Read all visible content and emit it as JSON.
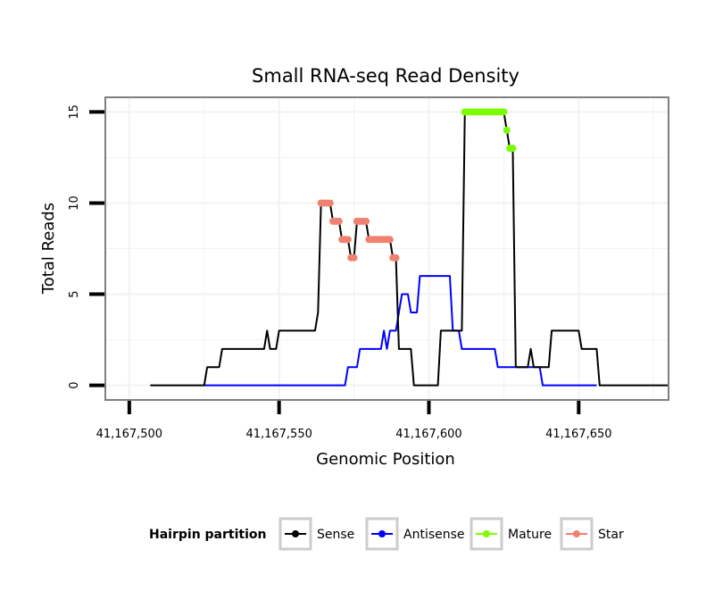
{
  "chart_data": {
    "type": "line",
    "title": "Small RNA-seq Read Density",
    "xlabel": "Genomic Position",
    "ylabel": "Total Reads",
    "xlim": [
      41167492,
      41167680
    ],
    "ylim": [
      -0.8,
      15.8
    ],
    "x_ticks": [
      41167500,
      41167550,
      41167600,
      41167650
    ],
    "x_tick_labels": [
      "41,167,500",
      "41,167,550",
      "41,167,600",
      "41,167,650"
    ],
    "y_ticks": [
      0,
      5,
      10,
      15
    ],
    "y_tick_labels": [
      "0",
      "5",
      "10",
      "15"
    ],
    "grid": true,
    "legend_title": "Hairpin partition",
    "legend_position": "bottom",
    "series": [
      {
        "name": "Sense",
        "color": "#000000",
        "points": [
          [
            41167507,
            0
          ],
          [
            41167525,
            0
          ],
          [
            41167526,
            1
          ],
          [
            41167530,
            1
          ],
          [
            41167531,
            2
          ],
          [
            41167545,
            2
          ],
          [
            41167546,
            3
          ],
          [
            41167547,
            2
          ],
          [
            41167549,
            2
          ],
          [
            41167550,
            3
          ],
          [
            41167562,
            3
          ],
          [
            41167563,
            4
          ],
          [
            41167564,
            10
          ],
          [
            41167567,
            10
          ],
          [
            41167568,
            9
          ],
          [
            41167570,
            9
          ],
          [
            41167571,
            8
          ],
          [
            41167573,
            8
          ],
          [
            41167574,
            7
          ],
          [
            41167575,
            7
          ],
          [
            41167576,
            9
          ],
          [
            41167579,
            9
          ],
          [
            41167580,
            8
          ],
          [
            41167587,
            8
          ],
          [
            41167588,
            7
          ],
          [
            41167589,
            7
          ],
          [
            41167590,
            2
          ],
          [
            41167594,
            2
          ],
          [
            41167595,
            0
          ],
          [
            41167603,
            0
          ],
          [
            41167604,
            3
          ],
          [
            41167611,
            3
          ],
          [
            41167612,
            15
          ],
          [
            41167625,
            15
          ],
          [
            41167626,
            14
          ],
          [
            41167627,
            13
          ],
          [
            41167628,
            13
          ],
          [
            41167629,
            1
          ],
          [
            41167633,
            1
          ],
          [
            41167634,
            2
          ],
          [
            41167635,
            1
          ],
          [
            41167640,
            1
          ],
          [
            41167641,
            3
          ],
          [
            41167650,
            3
          ],
          [
            41167651,
            2
          ],
          [
            41167656,
            2
          ],
          [
            41167657,
            0
          ],
          [
            41167680,
            0
          ]
        ]
      },
      {
        "name": "Antisense",
        "color": "#0000ff",
        "points": [
          [
            41167525,
            0
          ],
          [
            41167572,
            0
          ],
          [
            41167573,
            1
          ],
          [
            41167576,
            1
          ],
          [
            41167577,
            2
          ],
          [
            41167584,
            2
          ],
          [
            41167585,
            3
          ],
          [
            41167586,
            2
          ],
          [
            41167587,
            3
          ],
          [
            41167589,
            3
          ],
          [
            41167590,
            4
          ],
          [
            41167591,
            5
          ],
          [
            41167593,
            5
          ],
          [
            41167594,
            4
          ],
          [
            41167596,
            4
          ],
          [
            41167597,
            6
          ],
          [
            41167607,
            6
          ],
          [
            41167608,
            3
          ],
          [
            41167610,
            3
          ],
          [
            41167611,
            2
          ],
          [
            41167622,
            2
          ],
          [
            41167623,
            1
          ],
          [
            41167637,
            1
          ],
          [
            41167638,
            0
          ],
          [
            41167656,
            0
          ]
        ]
      },
      {
        "name": "Mature",
        "color": "#7cfc00",
        "points": [
          [
            41167612,
            15
          ],
          [
            41167613,
            15
          ],
          [
            41167614,
            15
          ],
          [
            41167615,
            15
          ],
          [
            41167616,
            15
          ],
          [
            41167617,
            15
          ],
          [
            41167618,
            15
          ],
          [
            41167619,
            15
          ],
          [
            41167620,
            15
          ],
          [
            41167621,
            15
          ],
          [
            41167622,
            15
          ],
          [
            41167623,
            15
          ],
          [
            41167624,
            15
          ],
          [
            41167625,
            15
          ],
          [
            41167626,
            14
          ],
          [
            41167627,
            13
          ],
          [
            41167628,
            13
          ]
        ]
      },
      {
        "name": "Star",
        "color": "#f08070",
        "points": [
          [
            41167564,
            10
          ],
          [
            41167565,
            10
          ],
          [
            41167566,
            10
          ],
          [
            41167567,
            10
          ],
          [
            41167568,
            9
          ],
          [
            41167569,
            9
          ],
          [
            41167570,
            9
          ],
          [
            41167571,
            8
          ],
          [
            41167572,
            8
          ],
          [
            41167573,
            8
          ],
          [
            41167574,
            7
          ],
          [
            41167575,
            7
          ],
          [
            41167576,
            9
          ],
          [
            41167577,
            9
          ],
          [
            41167578,
            9
          ],
          [
            41167579,
            9
          ],
          [
            41167580,
            8
          ],
          [
            41167581,
            8
          ],
          [
            41167582,
            8
          ],
          [
            41167583,
            8
          ],
          [
            41167584,
            8
          ],
          [
            41167585,
            8
          ],
          [
            41167586,
            8
          ],
          [
            41167587,
            8
          ],
          [
            41167588,
            7
          ],
          [
            41167589,
            7
          ]
        ]
      }
    ]
  },
  "colors": {
    "panel_border": "#7f7f7f",
    "grid": "#f2f2f2",
    "legend_key_border": "#cccccc"
  }
}
